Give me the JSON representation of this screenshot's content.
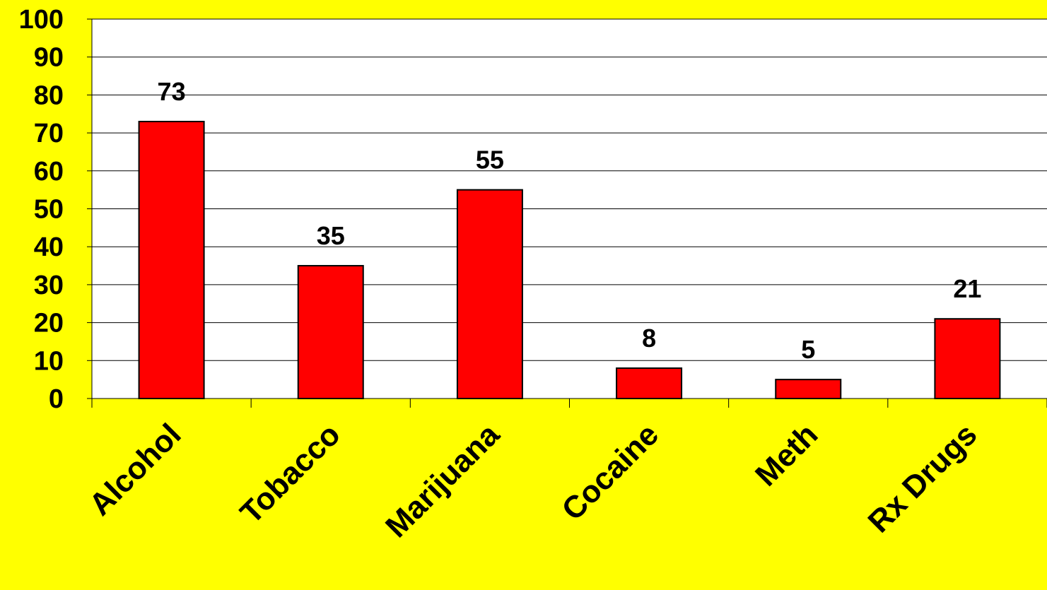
{
  "chart_data": {
    "type": "bar",
    "categories": [
      "Alcohol",
      "Tobacco",
      "Marijuana",
      "Cocaine",
      "Meth",
      "Rx Drugs"
    ],
    "values": [
      73,
      35,
      55,
      8,
      5,
      21
    ],
    "data_labels": [
      "73",
      "35",
      "55",
      "8",
      "5",
      "21"
    ],
    "ylim": [
      0,
      100
    ],
    "yticks": [
      "0",
      "10",
      "20",
      "30",
      "40",
      "50",
      "60",
      "70",
      "80",
      "90",
      "100"
    ],
    "grid": true,
    "title": "",
    "xlabel": "",
    "ylabel": "",
    "colors": {
      "background": "#ffff00",
      "plot_area": "#ffffff",
      "bar": "#ff0000",
      "bar_outline": "#000000",
      "text": "#000000"
    }
  }
}
